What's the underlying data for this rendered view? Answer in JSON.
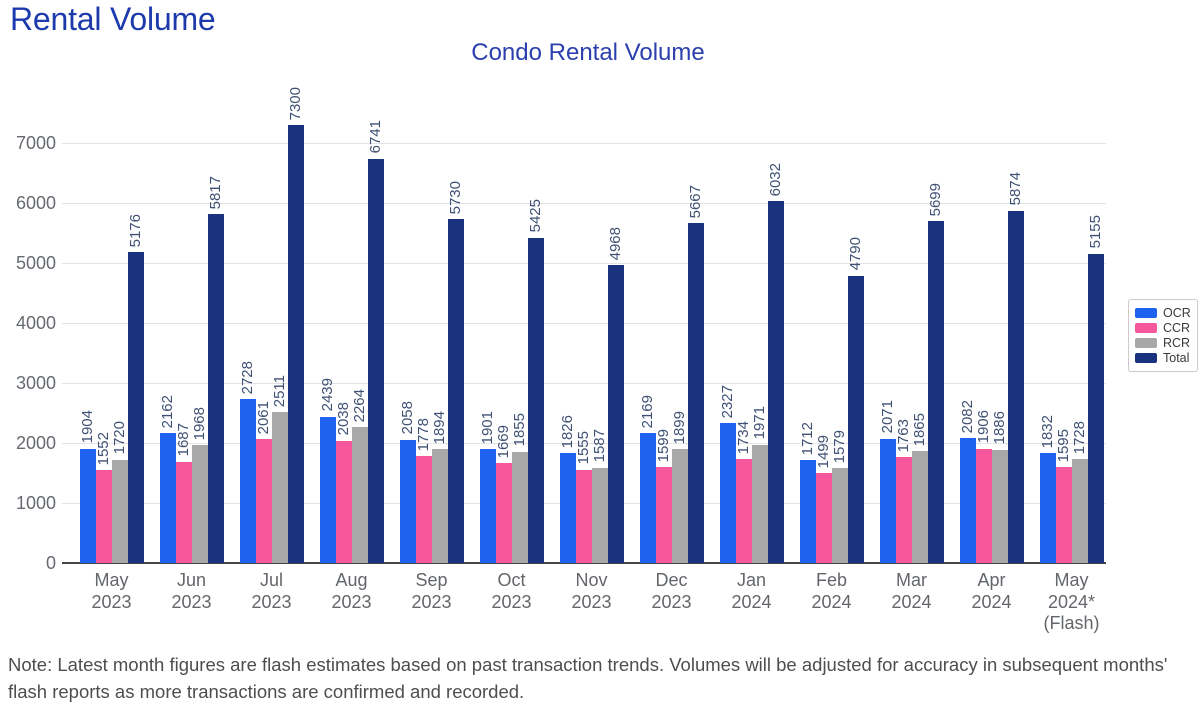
{
  "page": {
    "heading": "Rental Volume"
  },
  "chart_data": {
    "type": "bar",
    "title": "Condo Rental Volume",
    "categories": [
      [
        "May",
        "2023"
      ],
      [
        "Jun",
        "2023"
      ],
      [
        "Jul",
        "2023"
      ],
      [
        "Aug",
        "2023"
      ],
      [
        "Sep",
        "2023"
      ],
      [
        "Oct",
        "2023"
      ],
      [
        "Nov",
        "2023"
      ],
      [
        "Dec",
        "2023"
      ],
      [
        "Jan",
        "2024"
      ],
      [
        "Feb",
        "2024"
      ],
      [
        "Mar",
        "2024"
      ],
      [
        "Apr",
        "2024"
      ],
      [
        "May",
        "2024*",
        "(Flash)"
      ]
    ],
    "series": [
      {
        "name": "OCR",
        "color": "#1f62f0",
        "values": [
          1904,
          2162,
          2728,
          2439,
          2058,
          1901,
          1826,
          2169,
          2327,
          1712,
          2071,
          2082,
          1832
        ]
      },
      {
        "name": "CCR",
        "color": "#f7589c",
        "values": [
          1552,
          1687,
          2061,
          2038,
          1778,
          1669,
          1555,
          1599,
          1734,
          1499,
          1763,
          1906,
          1595
        ]
      },
      {
        "name": "RCR",
        "color": "#a8a8a8",
        "values": [
          1720,
          1968,
          2511,
          2264,
          1894,
          1855,
          1587,
          1899,
          1971,
          1579,
          1865,
          1886,
          1728
        ]
      },
      {
        "name": "Total",
        "color": "#1b337f",
        "values": [
          5176,
          5817,
          7300,
          6741,
          5730,
          5425,
          4968,
          5667,
          6032,
          4790,
          5699,
          5874,
          5155
        ]
      }
    ],
    "y_ticks": [
      0,
      1000,
      2000,
      3000,
      4000,
      5000,
      6000,
      7000
    ],
    "ylim": [
      0,
      7500
    ],
    "grid": true,
    "legend_position": "right",
    "value_labels": "rotated-90"
  },
  "note": "Note: Latest month figures are flash estimates based on past transaction trends. Volumes will be adjusted for accuracy in subsequent months' flash reports as more transactions are confirmed and recorded."
}
